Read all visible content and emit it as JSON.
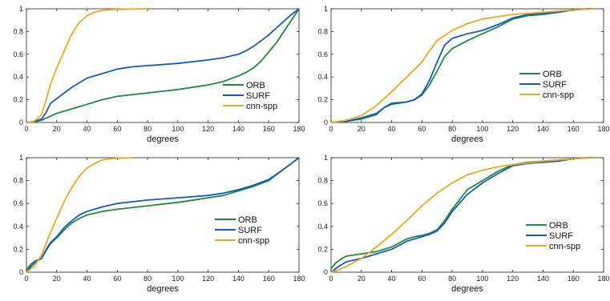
{
  "colors": {
    "ORB": "#1b8c3a",
    "SURF": "#1658c8",
    "cnn-spp": "#f2a71b"
  },
  "chart_data": [
    {
      "type": "line",
      "xlabel": "degrees",
      "xlim": [
        0,
        180
      ],
      "ylim": [
        0,
        1
      ],
      "xticks": [
        0,
        20,
        40,
        60,
        80,
        100,
        120,
        140,
        160,
        180
      ],
      "yticks": [
        0,
        0.2,
        0.4,
        0.6,
        0.8,
        1
      ],
      "xtick_labels": [
        "0",
        "20",
        "40",
        "60",
        "80",
        "100",
        "120",
        "140",
        "160",
        "180"
      ],
      "ytick_labels": [
        "0",
        "0.2",
        "0.4",
        "0.6",
        "0.8",
        "1"
      ],
      "legend": "bottom-right",
      "series": [
        {
          "name": "ORB",
          "x": [
            0,
            5,
            10,
            15,
            20,
            30,
            40,
            50,
            60,
            80,
            100,
            120,
            130,
            140,
            145,
            150,
            155,
            160,
            165,
            170,
            175,
            180
          ],
          "y": [
            0,
            0.005,
            0.02,
            0.05,
            0.08,
            0.12,
            0.16,
            0.2,
            0.23,
            0.26,
            0.29,
            0.33,
            0.36,
            0.41,
            0.44,
            0.48,
            0.54,
            0.62,
            0.7,
            0.8,
            0.9,
            1.0
          ]
        },
        {
          "name": "SURF",
          "x": [
            0,
            5,
            10,
            13,
            16,
            20,
            25,
            30,
            35,
            40,
            45,
            50,
            55,
            60,
            70,
            80,
            100,
            120,
            130,
            140,
            145,
            150,
            155,
            160,
            165,
            170,
            175,
            180
          ],
          "y": [
            0,
            0.01,
            0.03,
            0.09,
            0.17,
            0.21,
            0.26,
            0.31,
            0.35,
            0.39,
            0.41,
            0.43,
            0.45,
            0.47,
            0.49,
            0.5,
            0.52,
            0.55,
            0.57,
            0.6,
            0.63,
            0.67,
            0.72,
            0.77,
            0.83,
            0.89,
            0.95,
            1.0
          ]
        },
        {
          "name": "cnn-spp",
          "x": [
            0,
            5,
            10,
            13,
            16,
            20,
            25,
            30,
            35,
            40,
            45,
            50,
            55,
            60,
            70,
            80
          ],
          "y": [
            0,
            0.01,
            0.07,
            0.2,
            0.34,
            0.48,
            0.63,
            0.78,
            0.88,
            0.94,
            0.97,
            0.985,
            0.992,
            0.995,
            0.998,
            1.0
          ]
        }
      ]
    },
    {
      "type": "line",
      "xlabel": "degrees",
      "xlim": [
        0,
        180
      ],
      "ylim": [
        0,
        1
      ],
      "xticks": [
        0,
        20,
        40,
        60,
        80,
        100,
        120,
        140,
        160,
        180
      ],
      "yticks": [
        0,
        0.2,
        0.4,
        0.6,
        0.8,
        1
      ],
      "xtick_labels": [
        "0",
        "20",
        "40",
        "60",
        "80",
        "100",
        "120",
        "140",
        "160",
        "180"
      ],
      "ytick_labels": [
        "0",
        "0.2",
        "0.4",
        "0.6",
        "0.8",
        "1"
      ],
      "legend": "bottom-right",
      "series": [
        {
          "name": "ORB",
          "x": [
            0,
            10,
            20,
            30,
            35,
            40,
            50,
            55,
            60,
            65,
            70,
            75,
            80,
            90,
            100,
            110,
            120,
            130,
            140,
            150,
            160,
            170,
            175
          ],
          "y": [
            0,
            0.01,
            0.03,
            0.07,
            0.13,
            0.16,
            0.18,
            0.2,
            0.24,
            0.33,
            0.45,
            0.58,
            0.65,
            0.72,
            0.78,
            0.84,
            0.91,
            0.94,
            0.95,
            0.97,
            0.99,
            1.0,
            1.0
          ]
        },
        {
          "name": "SURF",
          "x": [
            0,
            10,
            20,
            30,
            35,
            40,
            50,
            55,
            60,
            65,
            70,
            75,
            80,
            90,
            100,
            110,
            120,
            130,
            140,
            150,
            160,
            170,
            175
          ],
          "y": [
            0,
            0.01,
            0.04,
            0.08,
            0.13,
            0.17,
            0.18,
            0.2,
            0.25,
            0.37,
            0.53,
            0.68,
            0.74,
            0.78,
            0.81,
            0.86,
            0.92,
            0.95,
            0.96,
            0.97,
            0.99,
            1.0,
            1.0
          ]
        },
        {
          "name": "cnn-spp",
          "x": [
            0,
            10,
            20,
            30,
            40,
            50,
            60,
            65,
            70,
            80,
            90,
            100,
            110,
            120,
            140,
            160,
            175
          ],
          "y": [
            0,
            0.02,
            0.06,
            0.15,
            0.27,
            0.4,
            0.53,
            0.63,
            0.72,
            0.81,
            0.87,
            0.91,
            0.93,
            0.95,
            0.97,
            0.99,
            1.0
          ]
        }
      ]
    },
    {
      "type": "line",
      "xlabel": "degrees",
      "xlim": [
        0,
        180
      ],
      "ylim": [
        0,
        1
      ],
      "xticks": [
        0,
        20,
        40,
        60,
        80,
        100,
        120,
        140,
        160,
        180
      ],
      "yticks": [
        0,
        0.2,
        0.4,
        0.6,
        0.8,
        1
      ],
      "xtick_labels": [
        "0",
        "20",
        "40",
        "60",
        "80",
        "100",
        "120",
        "140",
        "160",
        "180"
      ],
      "ytick_labels": [
        "0",
        "0.2",
        "0.4",
        "0.6",
        "0.8",
        "1"
      ],
      "legend": "bottom-right",
      "series": [
        {
          "name": "ORB",
          "x": [
            0,
            3,
            6,
            10,
            13,
            16,
            20,
            25,
            30,
            35,
            40,
            50,
            60,
            80,
            100,
            120,
            130,
            140,
            150,
            160,
            170,
            180
          ],
          "y": [
            0.02,
            0.07,
            0.1,
            0.12,
            0.19,
            0.25,
            0.3,
            0.37,
            0.43,
            0.47,
            0.5,
            0.53,
            0.55,
            0.58,
            0.61,
            0.65,
            0.67,
            0.71,
            0.75,
            0.8,
            0.9,
            1.0
          ]
        },
        {
          "name": "SURF",
          "x": [
            0,
            3,
            6,
            10,
            13,
            16,
            20,
            25,
            30,
            35,
            40,
            50,
            60,
            80,
            100,
            120,
            130,
            140,
            150,
            160,
            170,
            180
          ],
          "y": [
            0,
            0.05,
            0.09,
            0.12,
            0.2,
            0.26,
            0.31,
            0.39,
            0.45,
            0.5,
            0.53,
            0.57,
            0.6,
            0.63,
            0.65,
            0.67,
            0.69,
            0.72,
            0.76,
            0.81,
            0.9,
            1.0
          ]
        },
        {
          "name": "cnn-spp",
          "x": [
            0,
            5,
            10,
            15,
            20,
            25,
            30,
            35,
            40,
            45,
            50,
            55,
            60,
            70
          ],
          "y": [
            0,
            0.05,
            0.15,
            0.32,
            0.47,
            0.62,
            0.74,
            0.84,
            0.91,
            0.95,
            0.98,
            0.99,
            0.995,
            1.0
          ]
        }
      ]
    },
    {
      "type": "line",
      "xlabel": "degrees",
      "xlim": [
        0,
        180
      ],
      "ylim": [
        0,
        1
      ],
      "xticks": [
        0,
        20,
        40,
        60,
        80,
        100,
        120,
        140,
        160,
        180
      ],
      "yticks": [
        0,
        0.2,
        0.4,
        0.6,
        0.8,
        1
      ],
      "xtick_labels": [
        "0",
        "20",
        "40",
        "60",
        "80",
        "100",
        "120",
        "140",
        "160",
        "180"
      ],
      "ytick_labels": [
        "0",
        "0.2",
        "0.4",
        "0.6",
        "0.8",
        "1"
      ],
      "legend": "bottom-right",
      "series": [
        {
          "name": "ORB",
          "x": [
            0,
            3,
            6,
            10,
            20,
            30,
            40,
            50,
            55,
            60,
            65,
            70,
            75,
            80,
            90,
            100,
            110,
            120,
            130,
            140,
            150,
            160,
            170,
            175
          ],
          "y": [
            0.03,
            0.08,
            0.11,
            0.14,
            0.16,
            0.18,
            0.22,
            0.29,
            0.31,
            0.32,
            0.34,
            0.37,
            0.45,
            0.55,
            0.72,
            0.8,
            0.88,
            0.94,
            0.96,
            0.97,
            0.98,
            0.99,
            1.0,
            1.0
          ]
        },
        {
          "name": "SURF",
          "x": [
            0,
            5,
            10,
            20,
            30,
            40,
            50,
            55,
            60,
            65,
            70,
            75,
            80,
            90,
            100,
            110,
            120,
            130,
            140,
            150,
            160,
            170,
            175
          ],
          "y": [
            0,
            0.05,
            0.09,
            0.12,
            0.16,
            0.2,
            0.27,
            0.29,
            0.31,
            0.33,
            0.36,
            0.43,
            0.53,
            0.68,
            0.78,
            0.86,
            0.93,
            0.95,
            0.96,
            0.97,
            0.99,
            1.0,
            1.0
          ]
        },
        {
          "name": "cnn-spp",
          "x": [
            0,
            5,
            10,
            20,
            30,
            40,
            50,
            60,
            70,
            80,
            90,
            100,
            110,
            120,
            140,
            160,
            175
          ],
          "y": [
            0,
            0.02,
            0.05,
            0.12,
            0.22,
            0.33,
            0.45,
            0.58,
            0.69,
            0.78,
            0.85,
            0.89,
            0.92,
            0.94,
            0.97,
            0.99,
            1.0
          ]
        }
      ]
    }
  ]
}
